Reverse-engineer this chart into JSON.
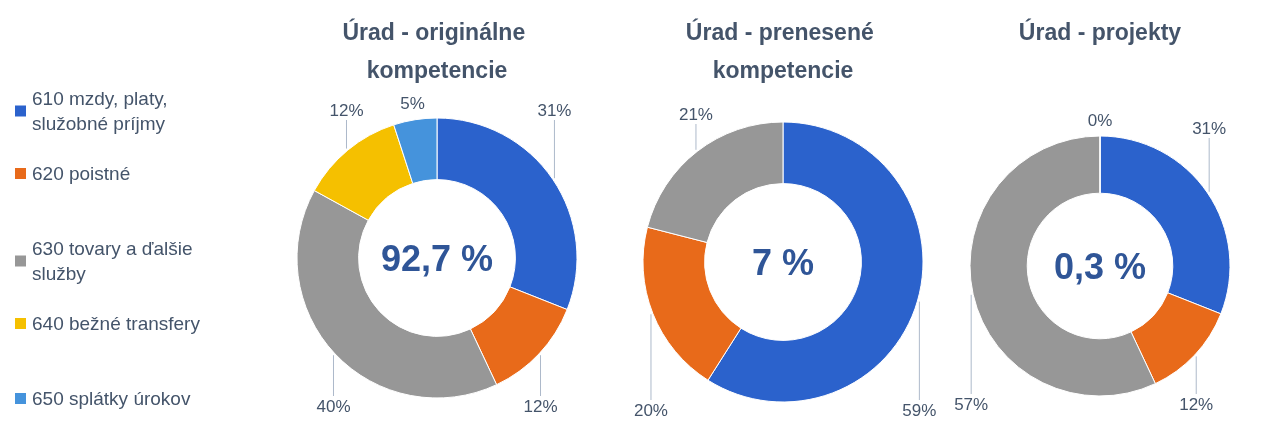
{
  "chart_data": [
    {
      "type": "donut",
      "title": "Úrad - originálne kompetencie",
      "categories": [
        "610 mzdy, platy, služobné príjmy",
        "620 poistné",
        "630 tovary a ďalšie služby",
        "640 bežné transfery",
        "650 splátky úrokov"
      ],
      "values": [
        31,
        12,
        40,
        12,
        5
      ],
      "colors": [
        "#2b62cc",
        "#e86a1a",
        "#979797",
        "#f5c000",
        "#4593dc"
      ],
      "value_labels": [
        "31%",
        "12%",
        "40%",
        "12%",
        "5%"
      ],
      "annotations": [
        "92,7 %"
      ],
      "legend": "left"
    },
    {
      "type": "donut",
      "title": "Úrad - prenesené kompetencie",
      "categories": [
        null,
        null,
        null
      ],
      "values": [
        59,
        20,
        21
      ],
      "colors": [
        "#2b62cc",
        "#e86a1a",
        "#979797"
      ],
      "value_labels": [
        "59%",
        "20%",
        "21%"
      ],
      "annotations": [
        "7 %"
      ]
    },
    {
      "type": "donut",
      "title": "Úrad - projekty",
      "categories": [
        null,
        null,
        null,
        null
      ],
      "values": [
        31,
        12,
        57,
        0
      ],
      "colors": [
        "#2b62cc",
        "#e86a1a",
        "#979797",
        "#f5c000"
      ],
      "value_labels": [
        "31%",
        "12%",
        "57%",
        "0%"
      ],
      "annotations": [
        "0,3 %"
      ]
    }
  ]
}
